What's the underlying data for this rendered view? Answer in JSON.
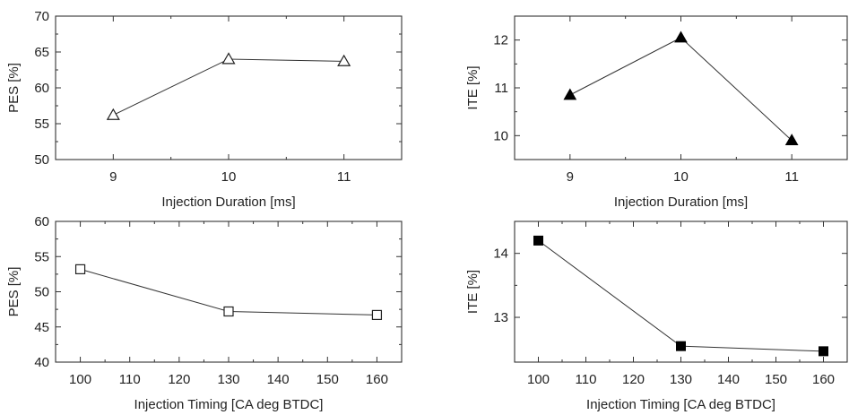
{
  "chart_data": [
    {
      "id": "pes-duration",
      "type": "line",
      "xlabel": "Injection Duration [ms]",
      "ylabel": "PES [%]",
      "x": [
        9,
        10,
        11
      ],
      "y": [
        56.2,
        64.0,
        63.7
      ],
      "xlim": [
        8.5,
        11.5
      ],
      "ylim": [
        50,
        70
      ],
      "xticks": [
        9,
        10,
        11
      ],
      "yticks": [
        50,
        55,
        60,
        65,
        70
      ],
      "marker": "triangle",
      "filled": false
    },
    {
      "id": "ite-duration",
      "type": "line",
      "xlabel": "Injection Duration [ms]",
      "ylabel": "ITE [%]",
      "x": [
        9,
        10,
        11
      ],
      "y": [
        10.85,
        12.05,
        9.9
      ],
      "xlim": [
        8.5,
        11.5
      ],
      "ylim": [
        9.5,
        12.5
      ],
      "xticks": [
        9,
        10,
        11
      ],
      "yticks": [
        10,
        11,
        12
      ],
      "marker": "triangle",
      "filled": true
    },
    {
      "id": "pes-timing",
      "type": "line",
      "xlabel": "Injection Timing [CA deg BTDC]",
      "ylabel": "PES [%]",
      "x": [
        100,
        130,
        160
      ],
      "y": [
        53.2,
        47.2,
        46.7
      ],
      "xlim": [
        95,
        165
      ],
      "ylim": [
        40,
        60
      ],
      "xticks": [
        100,
        110,
        120,
        130,
        140,
        150,
        160
      ],
      "yticks": [
        40,
        45,
        50,
        55,
        60
      ],
      "marker": "square",
      "filled": false
    },
    {
      "id": "ite-timing",
      "type": "line",
      "xlabel": "Injection Timing [CA deg BTDC]",
      "ylabel": "ITE [%]",
      "x": [
        100,
        130,
        160
      ],
      "y": [
        14.2,
        12.55,
        12.47
      ],
      "xlim": [
        95,
        165
      ],
      "ylim": [
        12.3,
        14.5
      ],
      "xticks": [
        100,
        110,
        120,
        130,
        140,
        150,
        160
      ],
      "yticks": [
        13,
        14
      ],
      "marker": "square",
      "filled": true
    }
  ]
}
